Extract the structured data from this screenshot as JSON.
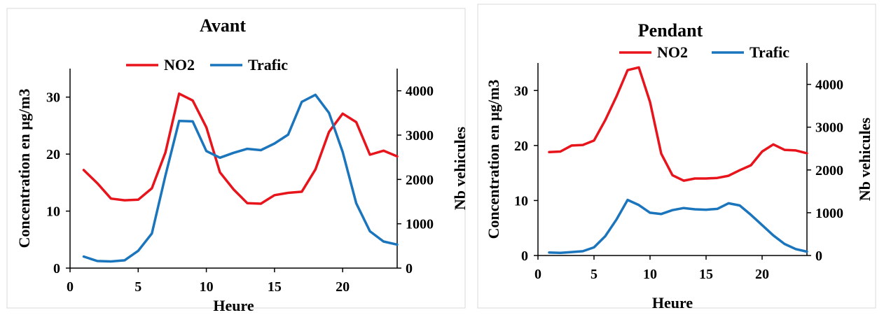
{
  "chart_data": [
    {
      "type": "line",
      "title": "Avant",
      "xlabel": "Heure",
      "ylabel": "Concentration en µg/m3",
      "y2label": "Nb vehicules",
      "x": [
        1,
        2,
        3,
        4,
        5,
        6,
        7,
        8,
        9,
        10,
        11,
        12,
        13,
        14,
        15,
        16,
        17,
        18,
        19,
        20,
        21,
        22,
        23,
        24
      ],
      "xlim": [
        0,
        24
      ],
      "xticks": [
        0,
        5,
        10,
        15,
        20
      ],
      "ylim": [
        0,
        35
      ],
      "yticks": [
        0,
        10,
        20,
        30
      ],
      "y2lim": [
        0,
        4500
      ],
      "y2ticks": [
        0,
        1000,
        2000,
        3000,
        4000
      ],
      "legend_position": "top",
      "series": [
        {
          "name": "NO2",
          "axis": "left",
          "color": "#e8141c",
          "values": [
            17.2,
            14.9,
            12.2,
            11.9,
            12.0,
            14.0,
            20.3,
            30.6,
            29.4,
            24.7,
            16.8,
            13.8,
            11.4,
            11.3,
            12.8,
            13.2,
            13.4,
            17.3,
            23.9,
            27.1,
            25.6,
            19.9,
            20.6,
            19.6
          ]
        },
        {
          "name": "Trafic",
          "axis": "right",
          "color": "#1b75bc",
          "values": [
            260,
            160,
            150,
            175,
            390,
            780,
            2090,
            3320,
            3310,
            2640,
            2490,
            2600,
            2690,
            2660,
            2810,
            3010,
            3750,
            3910,
            3500,
            2620,
            1460,
            830,
            600,
            530
          ]
        }
      ]
    },
    {
      "type": "line",
      "title": "Pendant",
      "xlabel": "Heure",
      "ylabel": "Concentration en µg/m3",
      "y2label": "Nb vehicules",
      "x": [
        1,
        2,
        3,
        4,
        5,
        6,
        7,
        8,
        9,
        10,
        11,
        12,
        13,
        14,
        15,
        16,
        17,
        18,
        19,
        20,
        21,
        22,
        23,
        24
      ],
      "xlim": [
        0,
        24
      ],
      "xticks": [
        0,
        5,
        10,
        15,
        20
      ],
      "ylim": [
        0,
        35
      ],
      "yticks": [
        0,
        10,
        20,
        30
      ],
      "y2lim": [
        0,
        4500
      ],
      "y2ticks": [
        0,
        1000,
        2000,
        3000,
        4000
      ],
      "legend_position": "top",
      "series": [
        {
          "name": "NO2",
          "axis": "left",
          "color": "#e8141c",
          "values": [
            18.8,
            18.9,
            20.0,
            20.1,
            20.9,
            24.6,
            28.9,
            33.7,
            34.2,
            27.9,
            18.5,
            14.6,
            13.6,
            14.0,
            14.0,
            14.1,
            14.5,
            15.5,
            16.4,
            18.9,
            20.2,
            19.2,
            19.1,
            18.6
          ]
        },
        {
          "name": "Trafic",
          "axis": "right",
          "color": "#1b75bc",
          "values": [
            70,
            60,
            80,
            100,
            190,
            450,
            840,
            1300,
            1180,
            1000,
            970,
            1060,
            1110,
            1080,
            1070,
            1090,
            1220,
            1170,
            950,
            710,
            470,
            270,
            150,
            90
          ]
        }
      ]
    }
  ]
}
